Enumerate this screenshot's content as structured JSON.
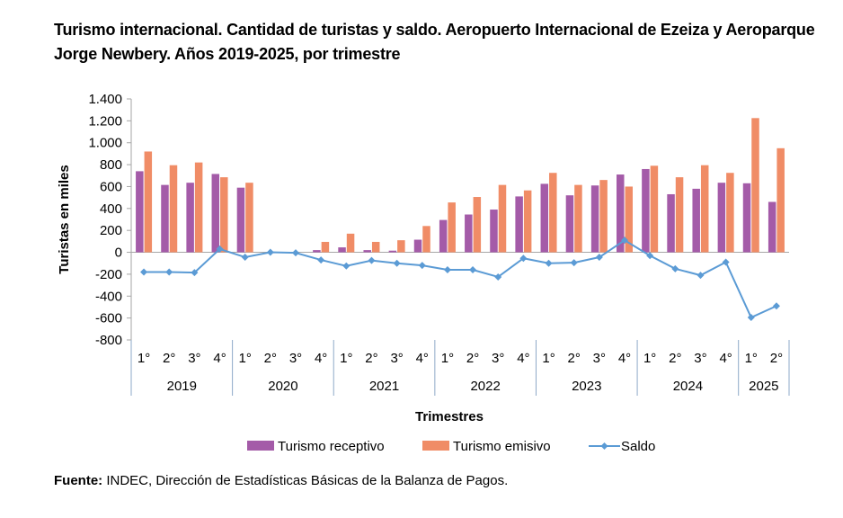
{
  "title": "Turismo internacional. Cantidad de turistas y saldo. Aeropuerto Internacional de Ezeiza y Aeroparque Jorge Newbery. Años 2019-2025, por trimestre",
  "source_label": "Fuente:",
  "source_text": "INDEC, Dirección de Estadísticas Básicas de la Balanza de Pagos.",
  "colors": {
    "receptivo": "#a45ba8",
    "emisivo": "#f08c66",
    "saldo": "#5b9bd5",
    "axis": "#a6a6a6"
  },
  "chart_data": {
    "type": "bar+line",
    "title": "Turismo internacional. Cantidad de turistas y saldo. Aeropuerto Internacional de Ezeiza y Aeroparque Jorge Newbery. Años 2019-2025, por trimestre",
    "xlabel": "Trimestres",
    "ylabel": "Turistas en miles",
    "ylim": [
      -800,
      1400
    ],
    "yticks": [
      1400,
      1200,
      1000,
      800,
      600,
      400,
      200,
      0,
      -200,
      -400,
      -600,
      -800
    ],
    "ytick_labels": [
      "1.400",
      "1.200",
      "1.000",
      "800",
      "600",
      "400",
      "200",
      "0",
      "-200",
      "-400",
      "-600",
      "-800"
    ],
    "groups": [
      {
        "year": "2019",
        "quarters": [
          "1°",
          "2°",
          "3°",
          "4°"
        ]
      },
      {
        "year": "2020",
        "quarters": [
          "1°",
          "2°",
          "3°",
          "4°"
        ]
      },
      {
        "year": "2021",
        "quarters": [
          "1°",
          "2°",
          "3°",
          "4°"
        ]
      },
      {
        "year": "2022",
        "quarters": [
          "1°",
          "2°",
          "3°",
          "4°"
        ]
      },
      {
        "year": "2023",
        "quarters": [
          "1°",
          "2°",
          "3°",
          "4°"
        ]
      },
      {
        "year": "2024",
        "quarters": [
          "1°",
          "2°",
          "3°",
          "4°"
        ]
      },
      {
        "year": "2025",
        "quarters": [
          "1°",
          "2°"
        ]
      }
    ],
    "series": [
      {
        "name": "Turismo receptivo",
        "kind": "bar",
        "values": [
          740,
          615,
          635,
          715,
          590,
          0,
          0,
          20,
          45,
          20,
          15,
          115,
          295,
          345,
          390,
          510,
          625,
          520,
          610,
          710,
          760,
          530,
          580,
          635,
          630,
          460
        ]
      },
      {
        "name": "Turismo emisivo",
        "kind": "bar",
        "values": [
          920,
          795,
          820,
          685,
          635,
          0,
          0,
          95,
          170,
          95,
          110,
          240,
          455,
          505,
          615,
          565,
          725,
          615,
          660,
          600,
          790,
          685,
          795,
          725,
          1225,
          950
        ]
      },
      {
        "name": "Saldo",
        "kind": "line",
        "values": [
          -180,
          -180,
          -185,
          30,
          -45,
          0,
          -5,
          -70,
          -125,
          -75,
          -100,
          -120,
          -160,
          -160,
          -225,
          -55,
          -100,
          -95,
          -45,
          110,
          -30,
          -150,
          -210,
          -90,
          -595,
          -490
        ]
      }
    ],
    "legend": [
      "Turismo receptivo",
      "Turismo emisivo",
      "Saldo"
    ],
    "legend_position": "bottom"
  }
}
